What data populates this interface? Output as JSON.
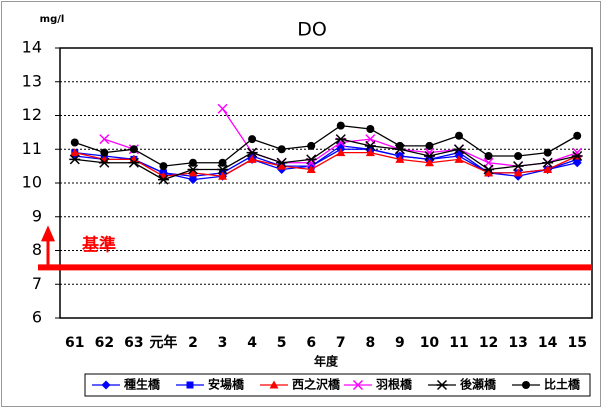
{
  "chart_data": {
    "type": "line",
    "title": "DO",
    "y_unit": "mg/l",
    "x_label": "年度",
    "categories": [
      "61",
      "62",
      "63",
      "元年",
      "2",
      "3",
      "4",
      "5",
      "6",
      "7",
      "8",
      "9",
      "10",
      "11",
      "12",
      "13",
      "14",
      "15"
    ],
    "ylim": [
      6,
      14
    ],
    "yticks": [
      6,
      7,
      8,
      9,
      10,
      11,
      12,
      13,
      14
    ],
    "grid": true,
    "reference": {
      "value": 7.5,
      "label": "基準",
      "color": "#ff0000"
    },
    "series": [
      {
        "name": "種生橋",
        "color": "#0000ff",
        "marker": "diamond",
        "values": [
          10.8,
          10.7,
          10.7,
          10.3,
          10.1,
          10.2,
          10.7,
          10.4,
          10.5,
          11.0,
          11.0,
          10.8,
          10.7,
          10.8,
          10.3,
          10.2,
          10.4,
          10.6
        ]
      },
      {
        "name": "安場橋",
        "color": "#0000ff",
        "marker": "square",
        "values": [
          10.9,
          10.8,
          10.7,
          10.3,
          10.2,
          10.3,
          10.8,
          10.5,
          10.5,
          11.1,
          11.0,
          10.8,
          10.7,
          10.9,
          10.3,
          10.3,
          10.4,
          10.7
        ]
      },
      {
        "name": "西之沢橋",
        "color": "#ff0000",
        "marker": "triangle",
        "values": [
          10.9,
          10.7,
          10.7,
          10.2,
          10.3,
          10.2,
          10.7,
          10.5,
          10.4,
          10.9,
          10.9,
          10.7,
          10.6,
          10.7,
          10.3,
          10.3,
          10.4,
          10.8
        ]
      },
      {
        "name": "羽根橋",
        "color": "#ff00ff",
        "marker": "x",
        "values": [
          null,
          11.3,
          11.0,
          null,
          null,
          12.2,
          10.9,
          10.6,
          10.6,
          11.2,
          11.3,
          11.0,
          10.9,
          11.0,
          10.6,
          10.5,
          10.6,
          10.9
        ]
      },
      {
        "name": "後瀬橋",
        "color": "#000000",
        "marker": "asterisk",
        "values": [
          10.7,
          10.6,
          10.6,
          10.1,
          10.4,
          10.4,
          10.9,
          10.6,
          10.7,
          11.3,
          11.1,
          11.0,
          10.8,
          11.0,
          10.4,
          10.5,
          10.6,
          10.8
        ]
      },
      {
        "name": "比土橋",
        "color": "#000000",
        "marker": "circle",
        "values": [
          11.2,
          10.9,
          11.0,
          10.5,
          10.6,
          10.6,
          11.3,
          11.0,
          11.1,
          11.7,
          11.6,
          11.1,
          11.1,
          11.4,
          10.8,
          10.8,
          10.9,
          11.4
        ]
      }
    ]
  }
}
